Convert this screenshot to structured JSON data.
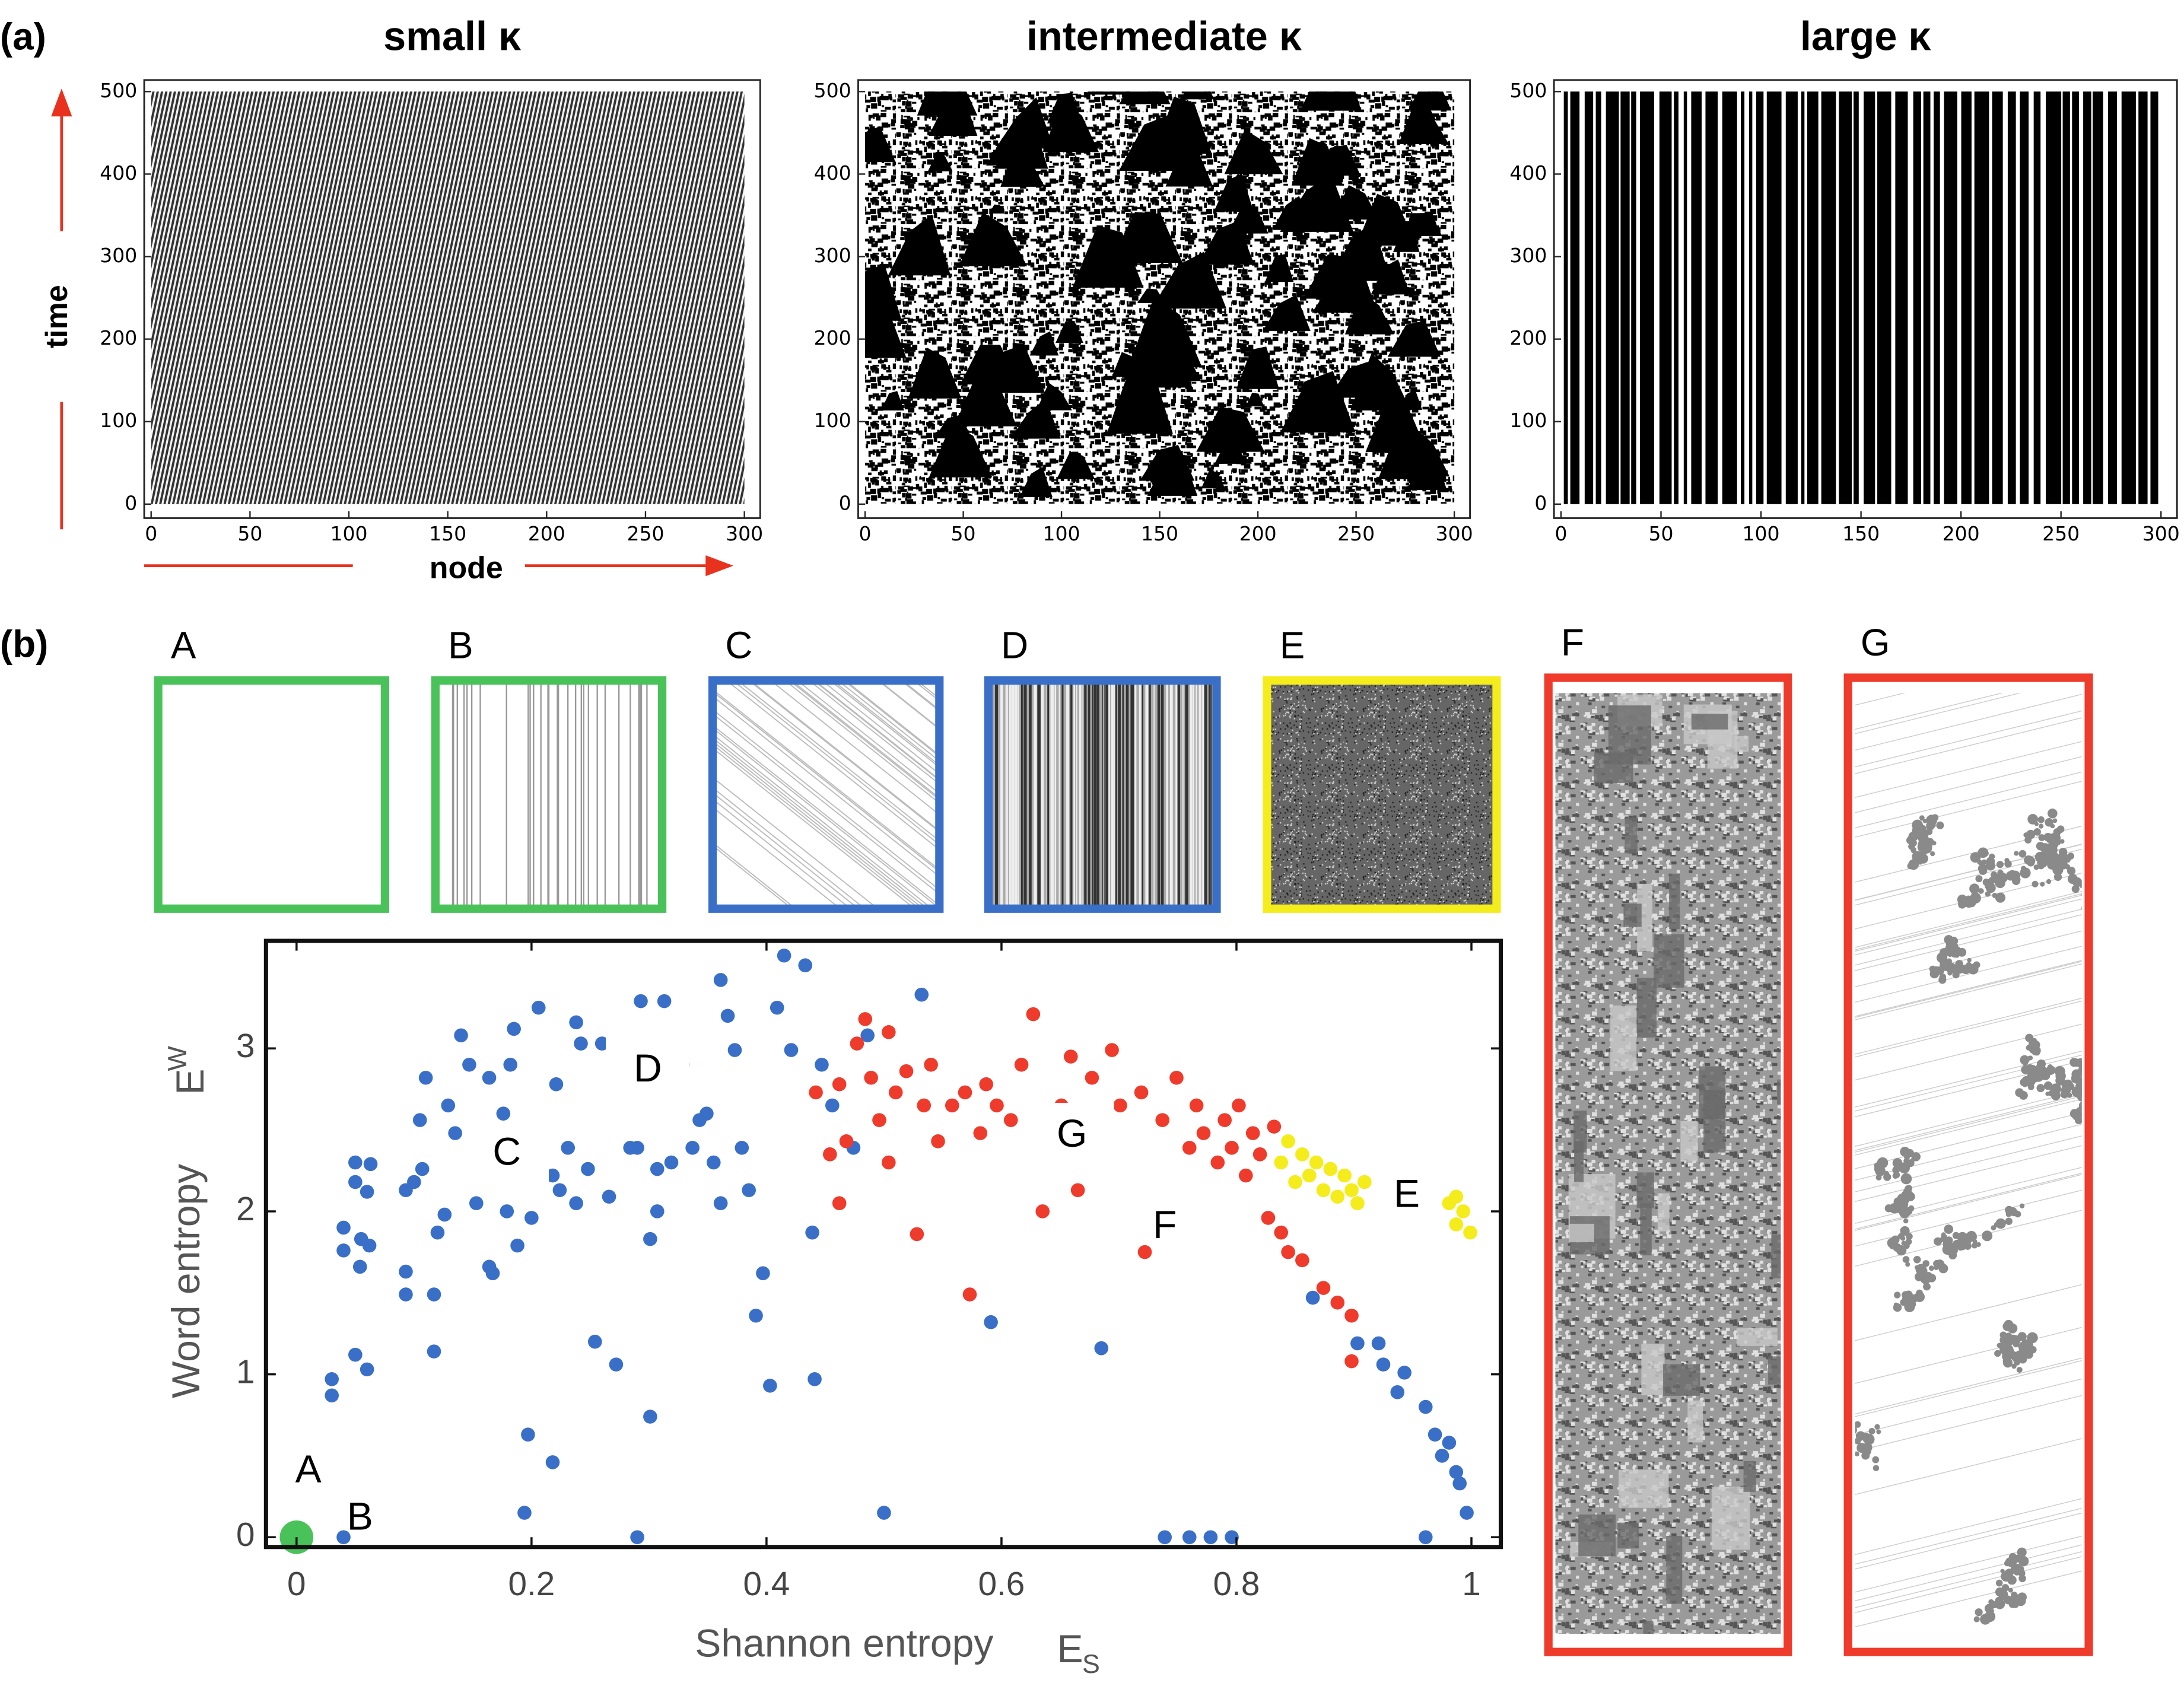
{
  "panel_labels": [
    "(a)",
    "(b)"
  ],
  "thumbnails": [
    {
      "label": "A",
      "color": "#4ac25a"
    },
    {
      "label": "B",
      "color": "#4ac25a"
    },
    {
      "label": "C",
      "color": "#3a6fc8"
    },
    {
      "label": "D",
      "color": "#3a6fc8"
    },
    {
      "label": "E",
      "color": "#f5ec1c"
    },
    {
      "label": "F",
      "color": "#ee3b2c"
    },
    {
      "label": "G",
      "color": "#ee3b2c"
    }
  ],
  "chart_data": [
    {
      "type": "raster",
      "title": "small κ",
      "xlabel": "node",
      "ylabel": "time",
      "xlim": [
        -3.5,
        308
      ],
      "ylim": [
        -17,
        514
      ],
      "xticks": [
        0,
        50,
        100,
        150,
        200,
        250,
        300
      ],
      "yticks": [
        0,
        100,
        200,
        300,
        400,
        500
      ]
    },
    {
      "type": "raster",
      "title": "intermediate κ",
      "xlim": [
        -3.5,
        308
      ],
      "ylim": [
        -17,
        514
      ],
      "xticks": [
        0,
        50,
        100,
        150,
        200,
        250,
        300
      ],
      "yticks": [
        0,
        100,
        200,
        300,
        400,
        500
      ]
    },
    {
      "type": "raster",
      "title": "large κ",
      "xlim": [
        -3.5,
        308
      ],
      "ylim": [
        -17,
        514
      ],
      "xticks": [
        0,
        50,
        100,
        150,
        200,
        250,
        300
      ],
      "yticks": [
        0,
        100,
        200,
        300,
        400,
        500
      ]
    },
    {
      "type": "scatter",
      "xlabel": "Shannon entropy",
      "xlabel_symbol": "E",
      "xlabel_subscript": "S",
      "ylabel": "Word entropy",
      "ylabel_symbol": "E",
      "ylabel_subscript": "W",
      "xlim": [
        -0.026,
        1.025
      ],
      "ylim": [
        -0.06,
        3.66
      ],
      "xticks": [
        0,
        0.2,
        0.4,
        0.6,
        0.8,
        1
      ],
      "yticks": [
        0,
        1,
        2,
        3
      ],
      "series": [
        {
          "color": "#4ac25a",
          "x": [
            0
          ],
          "y": [
            0
          ]
        },
        {
          "color": "#3a6fc8",
          "x": [
            0.04,
            0.03,
            0.03,
            0.05,
            0.06,
            0.04,
            0.04,
            0.055,
            0.054,
            0.062,
            0.05,
            0.05,
            0.06,
            0.063,
            0.093,
            0.093,
            0.1,
            0.093,
            0.107,
            0.105,
            0.11,
            0.117,
            0.117,
            0.12,
            0.126,
            0.129,
            0.14,
            0.147,
            0.135,
            0.153,
            0.164,
            0.167,
            0.164,
            0.176,
            0.182,
            0.179,
            0.188,
            0.194,
            0.197,
            0.218,
            0.185,
            0.206,
            0.221,
            0.197,
            0.2,
            0.218,
            0.224,
            0.231,
            0.238,
            0.248,
            0.254,
            0.242,
            0.26,
            0.238,
            0.272,
            0.266,
            0.284,
            0.29,
            0.29,
            0.293,
            0.301,
            0.301,
            0.307,
            0.313,
            0.307,
            0.319,
            0.329,
            0.337,
            0.343,
            0.349,
            0.355,
            0.361,
            0.367,
            0.361,
            0.373,
            0.379,
            0.385,
            0.391,
            0.397,
            0.403,
            0.409,
            0.415,
            0.421,
            0.433,
            0.441,
            0.439,
            0.447,
            0.456,
            0.474,
            0.5,
            0.486,
            0.532,
            0.591,
            0.685,
            0.739,
            0.76,
            0.778,
            0.796,
            0.865,
            0.903,
            0.921,
            0.925,
            0.937,
            0.943,
            0.961,
            0.969,
            0.975,
            0.981,
            0.99,
            0.996,
            0.961,
            0.987
          ],
          "y": [
            0,
            0.87,
            0.97,
            1.12,
            1.03,
            1.9,
            1.76,
            1.83,
            1.66,
            1.79,
            2.3,
            2.18,
            2.12,
            2.29,
            1.63,
            1.49,
            2.18,
            2.13,
            2.26,
            2.56,
            2.82,
            1.49,
            1.14,
            1.87,
            1.98,
            2.65,
            3.08,
            2.9,
            2.48,
            2.05,
            1.66,
            1.62,
            2.82,
            2.6,
            2.9,
            2.0,
            1.79,
            0.15,
            0.63,
            0.46,
            3.12,
            3.25,
            2.78,
            2.3,
            1.96,
            2.22,
            2.13,
            2.39,
            2.05,
            2.26,
            1.2,
            3.03,
            3.03,
            3.16,
            1.06,
            2.09,
            2.39,
            0,
            2.39,
            3.29,
            0.74,
            1.83,
            2.26,
            3.29,
            2.0,
            2.3,
            2.9,
            2.39,
            2.56,
            2.6,
            2.3,
            3.42,
            3.2,
            2.05,
            2.99,
            2.39,
            2.13,
            1.36,
            1.62,
            0.93,
            3.25,
            3.57,
            2.99,
            3.51,
            0.97,
            1.87,
            2.9,
            2.65,
            2.39,
            0.15,
            3.08,
            3.33,
            1.32,
            1.16,
            0,
            0,
            0,
            0,
            1.47,
            1.19,
            1.19,
            1.06,
            0.89,
            1.01,
            0.8,
            0.63,
            0.5,
            0.58,
            0.33,
            0.15,
            0,
            0.4
          ]
        },
        {
          "color": "#ee3b2c",
          "x": [
            0.442,
            0.454,
            0.462,
            0.462,
            0.468,
            0.477,
            0.484,
            0.489,
            0.496,
            0.504,
            0.504,
            0.51,
            0.519,
            0.528,
            0.534,
            0.54,
            0.546,
            0.558,
            0.569,
            0.573,
            0.582,
            0.587,
            0.596,
            0.608,
            0.617,
            0.627,
            0.635,
            0.641,
            0.651,
            0.659,
            0.665,
            0.677,
            0.694,
            0.701,
            0.719,
            0.722,
            0.737,
            0.749,
            0.76,
            0.766,
            0.772,
            0.784,
            0.79,
            0.796,
            0.802,
            0.808,
            0.814,
            0.82,
            0.827,
            0.832,
            0.838,
            0.844,
            0.856,
            0.874,
            0.886,
            0.898,
            0.898
          ],
          "y": [
            2.73,
            2.35,
            2.05,
            2.78,
            2.43,
            3.03,
            3.18,
            2.82,
            2.56,
            3.1,
            2.3,
            2.73,
            2.86,
            1.86,
            2.65,
            2.9,
            2.43,
            2.65,
            2.73,
            1.49,
            2.48,
            2.78,
            2.65,
            2.56,
            2.9,
            3.21,
            2.0,
            2.35,
            2.65,
            2.95,
            2.13,
            2.82,
            2.99,
            2.65,
            2.73,
            1.75,
            2.56,
            2.82,
            2.39,
            2.65,
            2.48,
            2.3,
            2.56,
            2.39,
            2.65,
            2.22,
            2.48,
            2.35,
            1.96,
            2.52,
            1.87,
            1.75,
            1.7,
            1.53,
            1.44,
            1.36,
            1.08
          ]
        },
        {
          "color": "#f5ec1c",
          "x": [
            0.838,
            0.844,
            0.85,
            0.856,
            0.862,
            0.868,
            0.874,
            0.88,
            0.886,
            0.892,
            0.898,
            0.903,
            0.909,
            0.981,
            0.987,
            0.993,
            0.999,
            0.987
          ],
          "y": [
            2.3,
            2.43,
            2.18,
            2.35,
            2.22,
            2.3,
            2.13,
            2.26,
            2.09,
            2.22,
            2.13,
            2.05,
            2.18,
            2.05,
            1.92,
            2.0,
            1.87,
            2.09
          ]
        }
      ],
      "annotations": [
        {
          "text": "A",
          "x": 0.01,
          "y": 0.4
        },
        {
          "text": "B",
          "x": 0.054,
          "y": 0.11
        },
        {
          "text": "C",
          "x": 0.179,
          "y": 2.35,
          "boxed": true
        },
        {
          "text": "D",
          "x": 0.299,
          "y": 2.86,
          "boxed": true
        },
        {
          "text": "G",
          "x": 0.66,
          "y": 2.46,
          "boxed": true
        },
        {
          "text": "E",
          "x": 0.945,
          "y": 2.09
        },
        {
          "text": "F",
          "x": 0.739,
          "y": 1.9
        }
      ]
    }
  ]
}
